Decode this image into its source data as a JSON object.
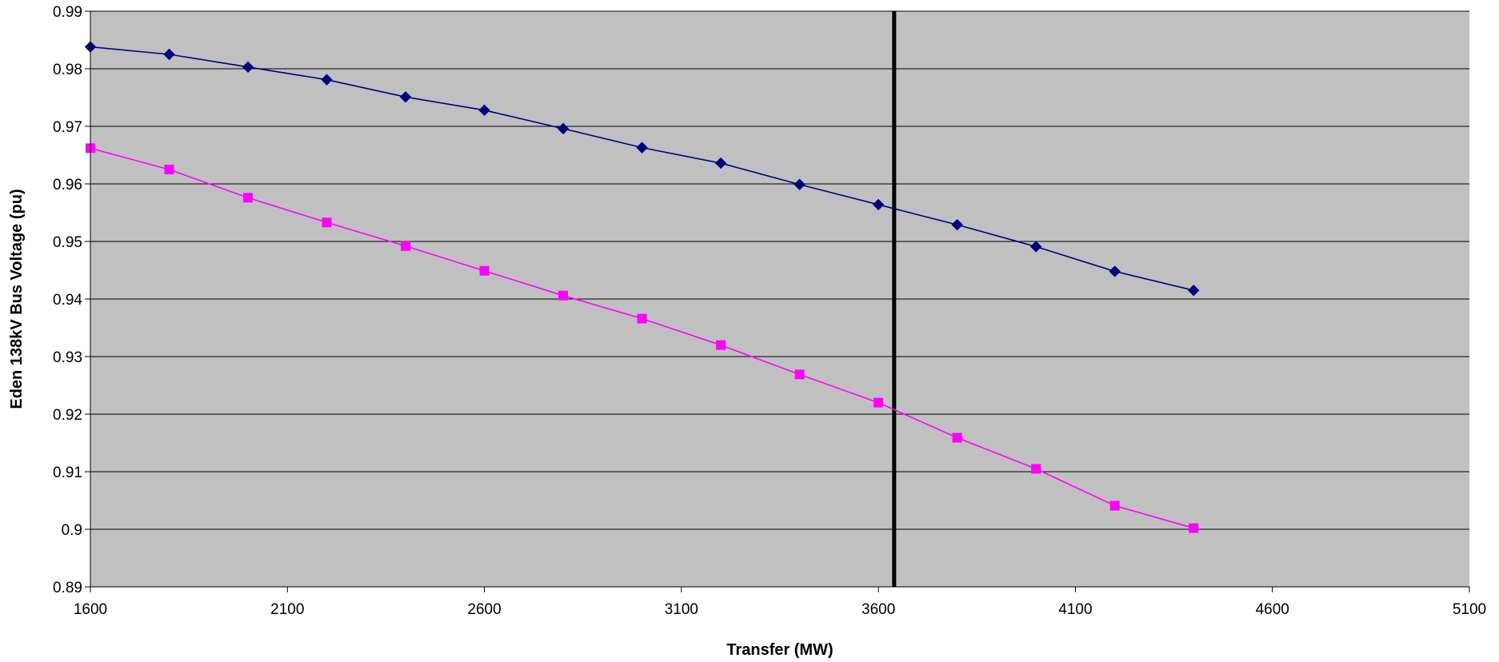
{
  "chart_data": {
    "type": "line",
    "title": "",
    "xlabel": "Transfer (MW)",
    "ylabel": "Eden 138kV Bus Voltage (pu)",
    "xlim": [
      1600,
      5100
    ],
    "ylim": [
      0.89,
      0.99
    ],
    "x_ticks": [
      1600,
      2100,
      2600,
      3100,
      3600,
      4100,
      4600,
      5100
    ],
    "y_ticks": [
      0.89,
      0.9,
      0.91,
      0.92,
      0.93,
      0.94,
      0.95,
      0.96,
      0.97,
      0.98,
      0.99
    ],
    "grid": "horizontal",
    "legend": "none",
    "plot_background": "#C0C0C0",
    "vertical_marker": {
      "x": 3640,
      "color": "#000000"
    },
    "x": [
      1600,
      1800,
      2000,
      2200,
      2400,
      2600,
      2800,
      3000,
      3200,
      3400,
      3600,
      3800,
      4000,
      4200,
      4400
    ],
    "series": [
      {
        "color": "#000080",
        "marker": "diamond",
        "values": [
          0.9838,
          0.9825,
          0.9803,
          0.9781,
          0.9751,
          0.9728,
          0.9696,
          0.9663,
          0.9636,
          0.9599,
          0.9564,
          0.9529,
          0.9491,
          0.9448,
          0.9415
        ]
      },
      {
        "color": "#FF00FF",
        "marker": "square",
        "values": [
          0.9662,
          0.9625,
          0.9576,
          0.9533,
          0.9492,
          0.9449,
          0.9406,
          0.9366,
          0.932,
          0.9269,
          0.922,
          0.9159,
          0.9105,
          0.9041,
          0.9002
        ]
      }
    ]
  }
}
